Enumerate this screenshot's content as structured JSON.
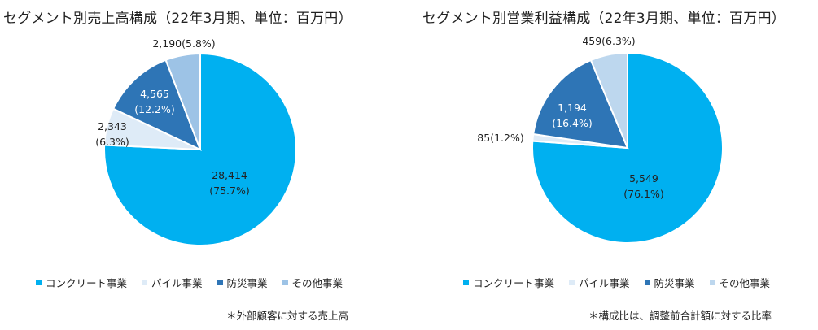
{
  "charts": [
    {
      "title": "セグメント別売上高構成（22年3月期、単位：百万円）",
      "footnote": "＊外部顧客に対する売上高"
    },
    {
      "title": "セグメント別営業利益構成（22年3月期、単位：百万円）",
      "footnote": "＊構成比は、調整前合計額に対する比率"
    }
  ],
  "chart_data": [
    {
      "type": "pie",
      "title": "セグメント別売上高構成（22年3月期、単位：百万円）",
      "slices": [
        {
          "name": "コンクリート事業",
          "value": 28414,
          "value_label": "28,414",
          "pct_label": "(75.7%)",
          "color": "#00B0F0"
        },
        {
          "name": "パイル事業",
          "value": 2343,
          "value_label": "2,343",
          "pct_label": "(6.3%)",
          "color": "#DEEBF7"
        },
        {
          "name": "防災事業",
          "value": 4565,
          "value_label": "4,565",
          "pct_label": "(12.2%)",
          "color": "#2E75B6"
        },
        {
          "name": "その他事業",
          "value": 2190,
          "value_label": "2,190",
          "pct_label": "(5.8%)",
          "color": "#9DC3E6"
        }
      ],
      "legend_position": "bottom"
    },
    {
      "type": "pie",
      "title": "セグメント別営業利益構成（22年3月期、単位：百万円）",
      "slices": [
        {
          "name": "コンクリート事業",
          "value": 5549,
          "value_label": "5,549",
          "pct_label": "(76.1%)",
          "color": "#00B0F0"
        },
        {
          "name": "パイル事業",
          "value": 85,
          "value_label": "85",
          "pct_label": "(1.2%)",
          "color": "#DEEBF7"
        },
        {
          "name": "防災事業",
          "value": 1194,
          "value_label": "1,194",
          "pct_label": "(16.4%)",
          "color": "#2E75B6"
        },
        {
          "name": "その他事業",
          "value": 459,
          "value_label": "459",
          "pct_label": "(6.3%)",
          "color": "#BDD7EE"
        }
      ],
      "legend_position": "bottom"
    }
  ]
}
